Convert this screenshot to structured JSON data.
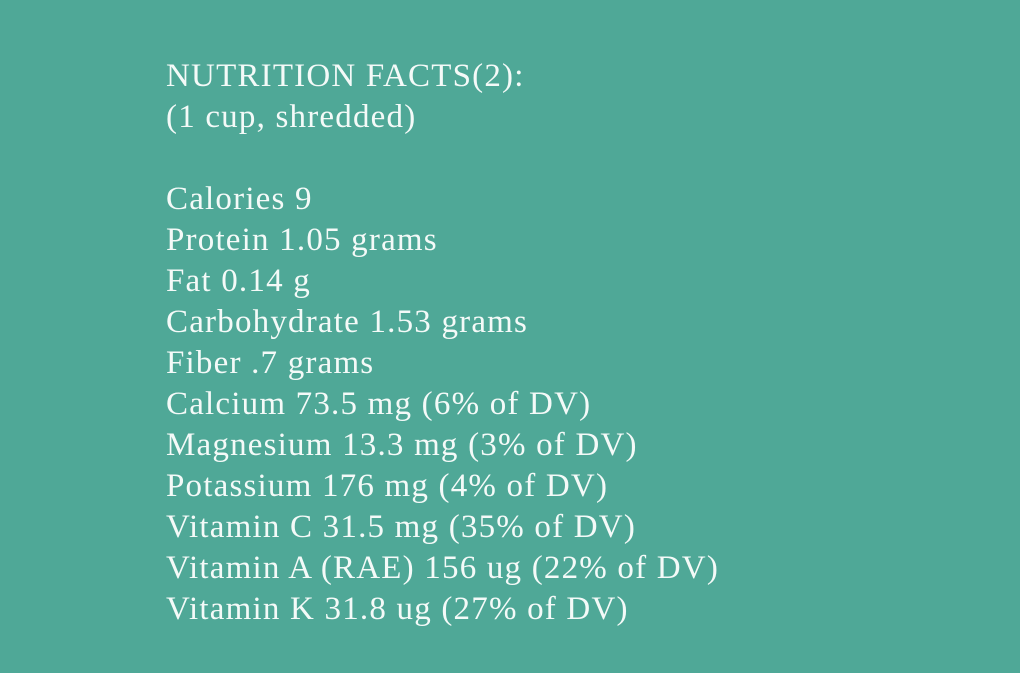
{
  "heading": {
    "title": "NUTRITION FACTS(2):",
    "serving": "(1 cup, shredded)"
  },
  "facts": [
    "Calories 9",
    "Protein 1.05 grams",
    "Fat 0.14 g",
    "Carbohydrate 1.53 grams",
    "Fiber .7 grams",
    "Calcium 73.5 mg (6% of DV)",
    "Magnesium 13.3 mg (3% of DV)",
    "Potassium 176 mg (4% of DV)",
    "Vitamin C 31.5 mg (35% of DV)",
    "Vitamin A (RAE) 156 ug (22% of DV)",
    "Vitamin K 31.8 ug (27% of DV)"
  ],
  "colors": {
    "background": "#4fa897",
    "text": "#f4faf8"
  }
}
